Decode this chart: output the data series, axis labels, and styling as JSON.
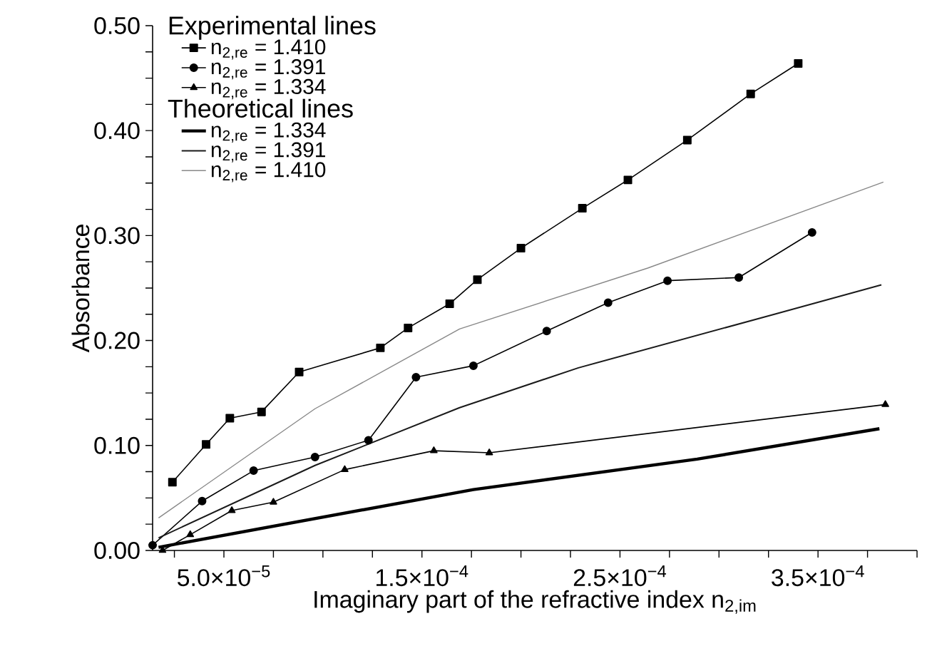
{
  "chart_data": {
    "type": "line",
    "xlabel": "Imaginary part of the refractive index n$_{2,im}$",
    "ylabel": "Absorbance",
    "annotations": [
      "Experimental lines",
      "Theoretical lines"
    ],
    "xlim": [
      1.4e-05,
      0.0004
    ],
    "ylim": [
      0,
      0.5
    ],
    "xticks": [
      {
        "value": 2.5e-05,
        "label": null
      },
      {
        "value": 5e-05,
        "label": "5.0×10$^{−5}$"
      },
      {
        "value": 7.5e-05,
        "label": null
      },
      {
        "value": 0.0001,
        "label": null
      },
      {
        "value": 0.000125,
        "label": null
      },
      {
        "value": 0.00015,
        "label": "1.5×10$^{−4}$"
      },
      {
        "value": 0.000175,
        "label": null
      },
      {
        "value": 0.0002,
        "label": null
      },
      {
        "value": 0.000225,
        "label": null
      },
      {
        "value": 0.00025,
        "label": "2.5×10$^{−4}$"
      },
      {
        "value": 0.000275,
        "label": null
      },
      {
        "value": 0.0003,
        "label": null
      },
      {
        "value": 0.000325,
        "label": null
      },
      {
        "value": 0.00035,
        "label": "3.5×10$^{−4}$"
      },
      {
        "value": 0.000375,
        "label": null
      },
      {
        "value": 0.0004,
        "label": null
      }
    ],
    "yticks": [
      {
        "value": 0,
        "label": "0.00"
      },
      {
        "value": 0.025,
        "label": null
      },
      {
        "value": 0.05,
        "label": null
      },
      {
        "value": 0.075,
        "label": null
      },
      {
        "value": 0.1,
        "label": "0.10"
      },
      {
        "value": 0.125,
        "label": null
      },
      {
        "value": 0.15,
        "label": null
      },
      {
        "value": 0.175,
        "label": null
      },
      {
        "value": 0.2,
        "label": "0.20"
      },
      {
        "value": 0.225,
        "label": null
      },
      {
        "value": 0.25,
        "label": null
      },
      {
        "value": 0.275,
        "label": null
      },
      {
        "value": 0.3,
        "label": "0.30"
      },
      {
        "value": 0.325,
        "label": null
      },
      {
        "value": 0.35,
        "label": null
      },
      {
        "value": 0.375,
        "label": null
      },
      {
        "value": 0.4,
        "label": "0.40"
      },
      {
        "value": 0.425,
        "label": null
      },
      {
        "value": 0.45,
        "label": null
      },
      {
        "value": 0.475,
        "label": null
      },
      {
        "value": 0.5,
        "label": "0.50"
      }
    ],
    "legend": "top left",
    "grid": false,
    "series": [
      {
        "name": "n$_{2,re}$ = 1.410",
        "color": "#000000",
        "marker": "square",
        "x": [
          2.4e-05,
          4.1e-05,
          5.3e-05,
          6.9e-05,
          8.8e-05,
          0.000129,
          0.000143,
          0.000164,
          0.000178,
          0.0002,
          0.000231,
          0.000254,
          0.000284,
          0.000316,
          0.00034
        ],
        "values": [
          0.065,
          0.101,
          0.126,
          0.132,
          0.17,
          0.193,
          0.212,
          0.235,
          0.258,
          0.288,
          0.326,
          0.353,
          0.391,
          0.435,
          0.464
        ]
      },
      {
        "name": "n$_{2,re}$ = 1.391",
        "color": "#000000",
        "marker": "circle",
        "x": [
          1.4e-05,
          3.9e-05,
          6.5e-05,
          9.6e-05,
          0.000123,
          0.000147,
          0.000176,
          0.000213,
          0.000244,
          0.000274,
          0.00031,
          0.000347
        ],
        "values": [
          0.005,
          0.047,
          0.076,
          0.089,
          0.105,
          0.165,
          0.176,
          0.209,
          0.236,
          0.257,
          0.26,
          0.303
        ]
      },
      {
        "name": "n$_{2,re}$ = 1.334",
        "color": "#000000",
        "marker": "triangle",
        "x": [
          1.9e-05,
          3.3e-05,
          5.4e-05,
          7.5e-05,
          0.000111,
          0.000156,
          0.000184,
          0.000384
        ],
        "values": [
          0.0,
          0.015,
          0.038,
          0.046,
          0.077,
          0.095,
          0.093,
          0.139
        ]
      },
      {
        "name": "n$_{2,re}$ = 1.334",
        "color": "#000000",
        "marker": "none",
        "x": [
          1.7e-05,
          0.000176,
          0.000289,
          0.000381
        ],
        "values": [
          0.003,
          0.058,
          0.087,
          0.116
        ]
      },
      {
        "name": "n$_{2,re}$ = 1.391",
        "color": "#1a1a1a",
        "marker": "none",
        "x": [
          1.7e-05,
          9.6e-05,
          0.000169,
          0.000229,
          0.000326,
          0.000382
        ],
        "values": [
          0.012,
          0.081,
          0.136,
          0.174,
          0.224,
          0.253
        ]
      },
      {
        "name": "n$_{2,re}$ = 1.410",
        "color": "#888888",
        "marker": "none",
        "x": [
          1.7e-05,
          9.6e-05,
          0.000169,
          0.000264,
          0.000383
        ],
        "values": [
          0.031,
          0.135,
          0.211,
          0.269,
          0.351
        ]
      }
    ]
  }
}
